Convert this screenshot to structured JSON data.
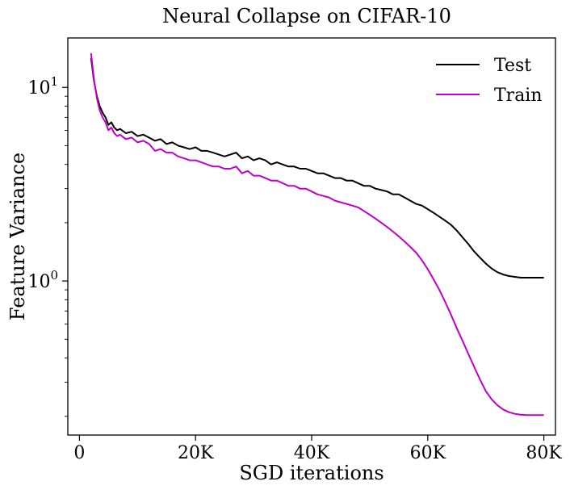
{
  "chart_data": {
    "type": "line",
    "title": "Neural Collapse on CIFAR-10",
    "xlabel": "SGD iterations",
    "ylabel": "Feature Variance",
    "xlim": [
      -2000,
      82000
    ],
    "ylim": [
      0.16,
      18
    ],
    "yscale": "log",
    "grid": false,
    "legend_position": "top-right",
    "x_ticks": [
      {
        "value": 0,
        "label": "0"
      },
      {
        "value": 20000,
        "label": "20K"
      },
      {
        "value": 40000,
        "label": "40K"
      },
      {
        "value": 60000,
        "label": "60K"
      },
      {
        "value": 80000,
        "label": "80K"
      }
    ],
    "y_ticks": [
      {
        "value": 1,
        "base": "10",
        "exp": "0"
      },
      {
        "value": 10,
        "base": "10",
        "exp": "1"
      }
    ],
    "series": [
      {
        "name": "Test",
        "color": "#000000",
        "x": [
          2000,
          2500,
          3000,
          3500,
          4000,
          4500,
          5000,
          5500,
          6000,
          6500,
          7000,
          8000,
          9000,
          10000,
          11000,
          12000,
          13000,
          14000,
          15000,
          16000,
          17000,
          18000,
          19000,
          20000,
          21000,
          22000,
          23000,
          24000,
          25000,
          26000,
          27000,
          28000,
          29000,
          30000,
          31000,
          32000,
          33000,
          34000,
          35000,
          36000,
          37000,
          38000,
          39000,
          40000,
          41000,
          42000,
          43000,
          44000,
          45000,
          46000,
          47000,
          48000,
          49000,
          50000,
          51000,
          52000,
          53000,
          54000,
          55000,
          56000,
          57000,
          58000,
          59000,
          60000,
          61000,
          62000,
          63000,
          64000,
          65000,
          66000,
          67000,
          68000,
          69000,
          70000,
          71000,
          72000,
          73000,
          74000,
          75000,
          76000,
          77000,
          78000,
          79000,
          80000
        ],
        "values": [
          14.2,
          10.8,
          9.0,
          8.0,
          7.4,
          7.0,
          6.4,
          6.6,
          6.2,
          6.0,
          6.1,
          5.8,
          5.9,
          5.6,
          5.7,
          5.5,
          5.3,
          5.4,
          5.1,
          5.2,
          5.0,
          4.9,
          4.8,
          4.9,
          4.7,
          4.7,
          4.6,
          4.5,
          4.4,
          4.5,
          4.6,
          4.3,
          4.4,
          4.2,
          4.3,
          4.2,
          4.0,
          4.1,
          4.0,
          3.9,
          3.9,
          3.8,
          3.8,
          3.7,
          3.6,
          3.6,
          3.5,
          3.4,
          3.4,
          3.3,
          3.3,
          3.2,
          3.1,
          3.1,
          3.0,
          2.95,
          2.9,
          2.8,
          2.8,
          2.7,
          2.6,
          2.5,
          2.45,
          2.35,
          2.25,
          2.15,
          2.05,
          1.95,
          1.82,
          1.68,
          1.55,
          1.42,
          1.32,
          1.23,
          1.16,
          1.11,
          1.08,
          1.06,
          1.05,
          1.04,
          1.04,
          1.04,
          1.04,
          1.04
        ]
      },
      {
        "name": "Train",
        "color": "#c000c8",
        "x": [
          2000,
          2500,
          3000,
          3500,
          4000,
          4500,
          5000,
          5500,
          6000,
          6500,
          7000,
          8000,
          9000,
          10000,
          11000,
          12000,
          13000,
          14000,
          15000,
          16000,
          17000,
          18000,
          19000,
          20000,
          21000,
          22000,
          23000,
          24000,
          25000,
          26000,
          27000,
          28000,
          29000,
          30000,
          31000,
          32000,
          33000,
          34000,
          35000,
          36000,
          37000,
          38000,
          39000,
          40000,
          41000,
          42000,
          43000,
          44000,
          45000,
          46000,
          47000,
          48000,
          49000,
          50000,
          51000,
          52000,
          53000,
          54000,
          55000,
          56000,
          57000,
          58000,
          59000,
          60000,
          61000,
          62000,
          63000,
          64000,
          65000,
          66000,
          67000,
          68000,
          69000,
          70000,
          71000,
          72000,
          73000,
          74000,
          75000,
          76000,
          77000,
          78000,
          79000,
          80000
        ],
        "values": [
          15.0,
          11.0,
          8.8,
          7.6,
          7.0,
          6.6,
          6.0,
          6.2,
          5.8,
          5.6,
          5.7,
          5.4,
          5.5,
          5.2,
          5.3,
          5.1,
          4.7,
          4.8,
          4.6,
          4.6,
          4.4,
          4.3,
          4.2,
          4.2,
          4.1,
          4.0,
          3.9,
          3.9,
          3.8,
          3.8,
          3.9,
          3.6,
          3.7,
          3.5,
          3.5,
          3.4,
          3.3,
          3.3,
          3.2,
          3.1,
          3.1,
          3.0,
          3.0,
          2.9,
          2.8,
          2.75,
          2.7,
          2.6,
          2.55,
          2.5,
          2.45,
          2.4,
          2.3,
          2.2,
          2.1,
          2.0,
          1.9,
          1.8,
          1.7,
          1.6,
          1.5,
          1.4,
          1.28,
          1.15,
          1.02,
          0.9,
          0.78,
          0.67,
          0.57,
          0.49,
          0.42,
          0.36,
          0.31,
          0.27,
          0.245,
          0.228,
          0.217,
          0.21,
          0.206,
          0.204,
          0.203,
          0.203,
          0.203,
          0.203
        ]
      }
    ]
  }
}
